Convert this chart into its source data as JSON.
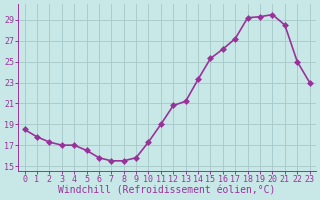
{
  "x_values": [
    0,
    1,
    2,
    3,
    4,
    5,
    6,
    7,
    8,
    9,
    10,
    11,
    12,
    13,
    14,
    15,
    16,
    17,
    18,
    19,
    20,
    21,
    22,
    23
  ],
  "y_values": [
    18.5,
    17.8,
    17.3,
    17.0,
    17.0,
    16.5,
    15.8,
    15.5,
    15.5,
    15.8,
    17.3,
    19.0,
    20.8,
    21.2,
    23.3,
    25.3,
    26.2,
    27.2,
    29.2,
    29.3,
    29.5,
    28.5,
    25.0,
    23.0
  ],
  "line_color": "#993399",
  "marker": "D",
  "markersize": 3,
  "linewidth": 1.2,
  "background_color": "#c8e8e8",
  "grid_color": "#aacccc",
  "xlabel": "Windchill (Refroidissement éolien,°C)",
  "xlabel_fontsize": 7,
  "tick_fontsize": 6,
  "xlim": [
    -0.5,
    23.5
  ],
  "ylim": [
    14.5,
    30.5
  ],
  "yticks": [
    15,
    17,
    19,
    21,
    23,
    25,
    27,
    29
  ],
  "xticks": [
    0,
    1,
    2,
    3,
    4,
    5,
    6,
    7,
    8,
    9,
    10,
    11,
    12,
    13,
    14,
    15,
    16,
    17,
    18,
    19,
    20,
    21,
    22,
    23
  ]
}
